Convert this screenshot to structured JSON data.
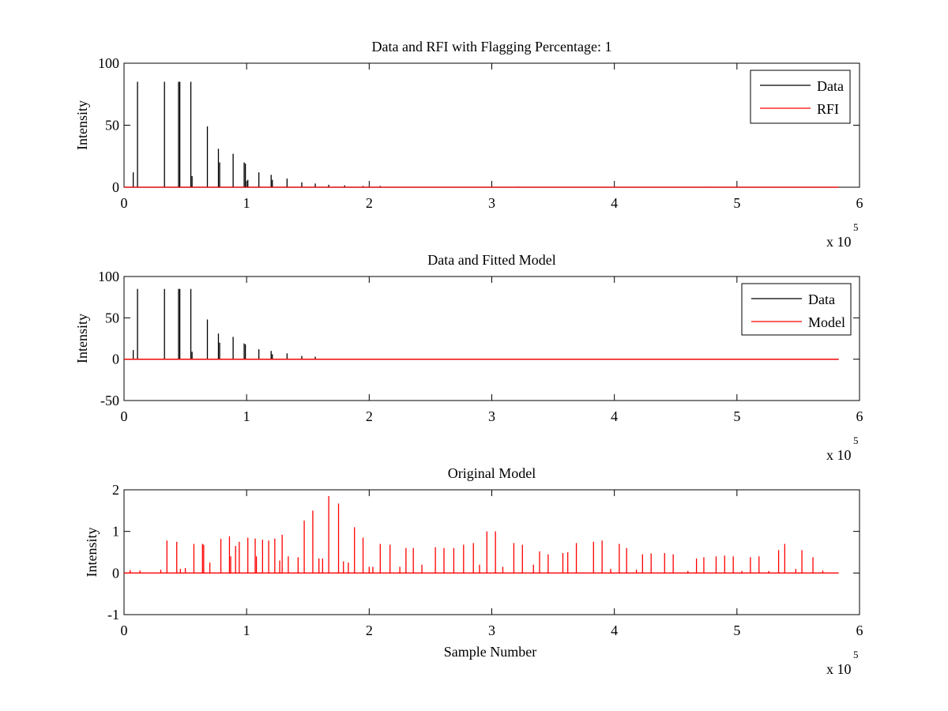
{
  "chart_data": [
    {
      "type": "line",
      "title": "Data and RFI with Flagging Percentage: 1",
      "xlabel": "",
      "ylabel": "Intensity",
      "xlim": [
        0,
        600000
      ],
      "ylim": [
        0,
        100
      ],
      "xticks": [
        0,
        1,
        2,
        3,
        4,
        5,
        6
      ],
      "yticks": [
        0,
        50,
        100
      ],
      "x_exponent_label": "x 10",
      "x_exponent_power": "5",
      "legend": {
        "position": "top-right",
        "entries": [
          "Data",
          "RFI"
        ]
      },
      "series": [
        {
          "name": "Data",
          "color": "#000000",
          "peaks": [
            [
              7500,
              12
            ],
            [
              11000,
              85
            ],
            [
              33000,
              85
            ],
            [
              44500,
              85
            ],
            [
              45500,
              85
            ],
            [
              54500,
              85
            ],
            [
              55500,
              9
            ],
            [
              68000,
              49
            ],
            [
              77000,
              31
            ],
            [
              78000,
              20
            ],
            [
              89000,
              27
            ],
            [
              98000,
              20
            ],
            [
              99000,
              19
            ],
            [
              101000,
              6
            ],
            [
              110000,
              12
            ],
            [
              120000,
              10
            ],
            [
              121000,
              6
            ],
            [
              133000,
              7
            ],
            [
              145000,
              4
            ],
            [
              156000,
              3
            ],
            [
              167000,
              2
            ],
            [
              180000,
              1.5
            ],
            [
              195000,
              1
            ],
            [
              209000,
              1
            ]
          ]
        },
        {
          "name": "RFI",
          "color": "#ff0000",
          "peaks": [
            [
              322000,
              0.5
            ],
            [
              475000,
              0.5
            ]
          ]
        }
      ]
    },
    {
      "type": "line",
      "title": "Data and Fitted Model",
      "xlabel": "",
      "ylabel": "Intensity",
      "xlim": [
        0,
        600000
      ],
      "ylim": [
        -50,
        100
      ],
      "xticks": [
        0,
        1,
        2,
        3,
        4,
        5,
        6
      ],
      "yticks": [
        -50,
        0,
        50,
        100
      ],
      "x_exponent_label": "x 10",
      "x_exponent_power": "5",
      "legend": {
        "position": "top-right",
        "entries": [
          "Data",
          "Model"
        ]
      },
      "series": [
        {
          "name": "Data",
          "color": "#000000",
          "peaks": [
            [
              7500,
              11
            ],
            [
              11000,
              85
            ],
            [
              33000,
              85
            ],
            [
              44500,
              85
            ],
            [
              45500,
              85
            ],
            [
              54500,
              85
            ],
            [
              55500,
              9
            ],
            [
              68000,
              48
            ],
            [
              77000,
              31
            ],
            [
              78000,
              20
            ],
            [
              89000,
              27
            ],
            [
              98000,
              19
            ],
            [
              99000,
              18
            ],
            [
              110000,
              12
            ],
            [
              120000,
              10
            ],
            [
              121000,
              6
            ],
            [
              133000,
              7
            ],
            [
              145000,
              4
            ],
            [
              156000,
              3
            ]
          ]
        },
        {
          "name": "Model",
          "color": "#ff0000",
          "baseline": 0
        }
      ]
    },
    {
      "type": "line",
      "title": "Original Model",
      "xlabel": "Sample Number",
      "ylabel": "Intensity",
      "xlim": [
        0,
        600000
      ],
      "ylim": [
        -1,
        2
      ],
      "xticks": [
        0,
        1,
        2,
        3,
        4,
        5,
        6
      ],
      "yticks": [
        -1,
        0,
        1,
        2
      ],
      "x_exponent_label": "x 10",
      "x_exponent_power": "5",
      "series": [
        {
          "name": "",
          "color": "#ff0000",
          "peaks": [
            [
              5000,
              0.07
            ],
            [
              13000,
              0.06
            ],
            [
              30000,
              0.08
            ],
            [
              35000,
              0.78
            ],
            [
              43000,
              0.75
            ],
            [
              46000,
              0.1
            ],
            [
              50000,
              0.12
            ],
            [
              57000,
              0.7
            ],
            [
              64000,
              0.7
            ],
            [
              65000,
              0.68
            ],
            [
              70000,
              0.25
            ],
            [
              79000,
              0.82
            ],
            [
              86000,
              0.88
            ],
            [
              87000,
              0.4
            ],
            [
              91000,
              0.65
            ],
            [
              94000,
              0.75
            ],
            [
              101000,
              0.85
            ],
            [
              107000,
              0.83
            ],
            [
              108000,
              0.4
            ],
            [
              113000,
              0.8
            ],
            [
              118000,
              0.78
            ],
            [
              123000,
              0.83
            ],
            [
              127000,
              0.3
            ],
            [
              129000,
              0.92
            ],
            [
              134000,
              0.4
            ],
            [
              142000,
              0.38
            ],
            [
              147000,
              1.26
            ],
            [
              154000,
              1.5
            ],
            [
              159000,
              0.35
            ],
            [
              162000,
              0.35
            ],
            [
              167000,
              1.85
            ],
            [
              175000,
              1.67
            ],
            [
              179000,
              0.28
            ],
            [
              183000,
              0.25
            ],
            [
              188000,
              1.1
            ],
            [
              195000,
              0.85
            ],
            [
              200000,
              0.15
            ],
            [
              203000,
              0.15
            ],
            [
              209000,
              0.7
            ],
            [
              217000,
              0.68
            ],
            [
              225000,
              0.15
            ],
            [
              230000,
              0.6
            ],
            [
              236000,
              0.6
            ],
            [
              243000,
              0.2
            ],
            [
              254000,
              0.62
            ],
            [
              261000,
              0.6
            ],
            [
              269000,
              0.6
            ],
            [
              277000,
              0.68
            ],
            [
              285000,
              0.72
            ],
            [
              290000,
              0.2
            ],
            [
              296000,
              1.0
            ],
            [
              303000,
              1.0
            ],
            [
              309000,
              0.15
            ],
            [
              318000,
              0.72
            ],
            [
              325000,
              0.68
            ],
            [
              334000,
              0.2
            ],
            [
              339000,
              0.52
            ],
            [
              346000,
              0.45
            ],
            [
              358000,
              0.48
            ],
            [
              362000,
              0.5
            ],
            [
              369000,
              0.72
            ],
            [
              383000,
              0.75
            ],
            [
              390000,
              0.78
            ],
            [
              397000,
              0.1
            ],
            [
              404000,
              0.7
            ],
            [
              410000,
              0.6
            ],
            [
              418000,
              0.08
            ],
            [
              423000,
              0.45
            ],
            [
              430000,
              0.47
            ],
            [
              441000,
              0.48
            ],
            [
              448000,
              0.45
            ],
            [
              460000,
              0.05
            ],
            [
              467000,
              0.35
            ],
            [
              473000,
              0.38
            ],
            [
              483000,
              0.4
            ],
            [
              490000,
              0.42
            ],
            [
              497000,
              0.4
            ],
            [
              504000,
              0.05
            ],
            [
              511000,
              0.38
            ],
            [
              518000,
              0.4
            ],
            [
              526000,
              0.05
            ],
            [
              534000,
              0.55
            ],
            [
              539000,
              0.7
            ],
            [
              548000,
              0.1
            ],
            [
              553000,
              0.55
            ],
            [
              562000,
              0.38
            ],
            [
              570000,
              0.06
            ]
          ]
        }
      ]
    }
  ]
}
